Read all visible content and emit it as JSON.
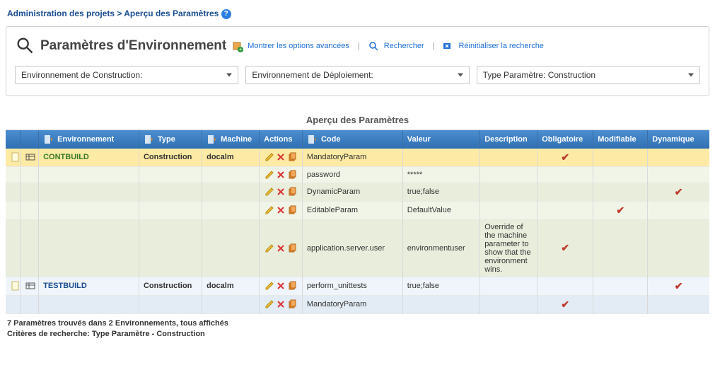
{
  "breadcrumb": {
    "segment1": "Administration des projets",
    "segment2": "Aperçu des Paramètres"
  },
  "panel": {
    "title": "Paramètres d'Environnement",
    "link_advanced": "Montrer les options avancées",
    "link_search": "Rechercher",
    "link_reset": "Réinitialiser la recherche",
    "filters": {
      "build_env": "Environnement de Construction:",
      "deploy_env": "Environnement de Déploiement:",
      "param_type": "Type Paramètre: Construction"
    }
  },
  "section_title": "Aperçu des Paramètres",
  "columns": {
    "env": "Environnement",
    "type": "Type",
    "machine": "Machine",
    "actions": "Actions",
    "code": "Code",
    "valeur": "Valeur",
    "desc": "Description",
    "oblig": "Obligatoire",
    "modif": "Modifiable",
    "dyn": "Dynamique"
  },
  "rows": [
    {
      "style": "yellow",
      "icons": true,
      "env": "CONTBUILD",
      "env_class": "env-name",
      "type": "Construction",
      "machine": "docalm",
      "actions": true,
      "code": "MandatoryParam",
      "valeur": "",
      "desc": "",
      "oblig": true,
      "modif": false,
      "dyn": false
    },
    {
      "style": "green-a",
      "actions": true,
      "code": "password",
      "valeur": "*****",
      "desc": "",
      "oblig": false,
      "modif": false,
      "dyn": false
    },
    {
      "style": "green-b",
      "actions": true,
      "code": "DynamicParam",
      "valeur": "true;false",
      "desc": "",
      "oblig": false,
      "modif": false,
      "dyn": true
    },
    {
      "style": "green-a",
      "actions": true,
      "code": "EditableParam",
      "valeur": "DefaultValue",
      "desc": "",
      "oblig": false,
      "modif": true,
      "dyn": false
    },
    {
      "style": "green-b",
      "actions": true,
      "code": "application.server.user",
      "valeur": "environmentuser",
      "desc": "Override of the machine parameter to show that the environment wins.",
      "oblig": true,
      "modif": false,
      "dyn": false
    },
    {
      "style": "blue-a",
      "icons": true,
      "env": "TESTBUILD",
      "env_class": "env-name-blue",
      "type": "Construction",
      "machine": "docalm",
      "actions": true,
      "code": "perform_unittests",
      "valeur": "true;false",
      "desc": "",
      "oblig": false,
      "modif": false,
      "dyn": true
    },
    {
      "style": "blue-b",
      "actions": true,
      "code": "MandatoryParam",
      "valeur": "",
      "desc": "",
      "oblig": true,
      "modif": false,
      "dyn": false
    }
  ],
  "footer": {
    "line1": "7 Paramètres trouvés dans 2 Environnements, tous affichés",
    "line2": "Critères de recherche: Type Paramètre - Construction"
  },
  "colors": {
    "header_gradient_top": "#4b8ed0",
    "header_gradient_bottom": "#2f6fb2",
    "row_yellow": "#fdeaa4",
    "row_green_a": "#f1f5e8",
    "row_green_b": "#e8eedb",
    "row_blue_a": "#eff5fb",
    "row_blue_b": "#e3ecf5",
    "check_color": "#c0392b",
    "link_color": "#1d6fd6"
  }
}
